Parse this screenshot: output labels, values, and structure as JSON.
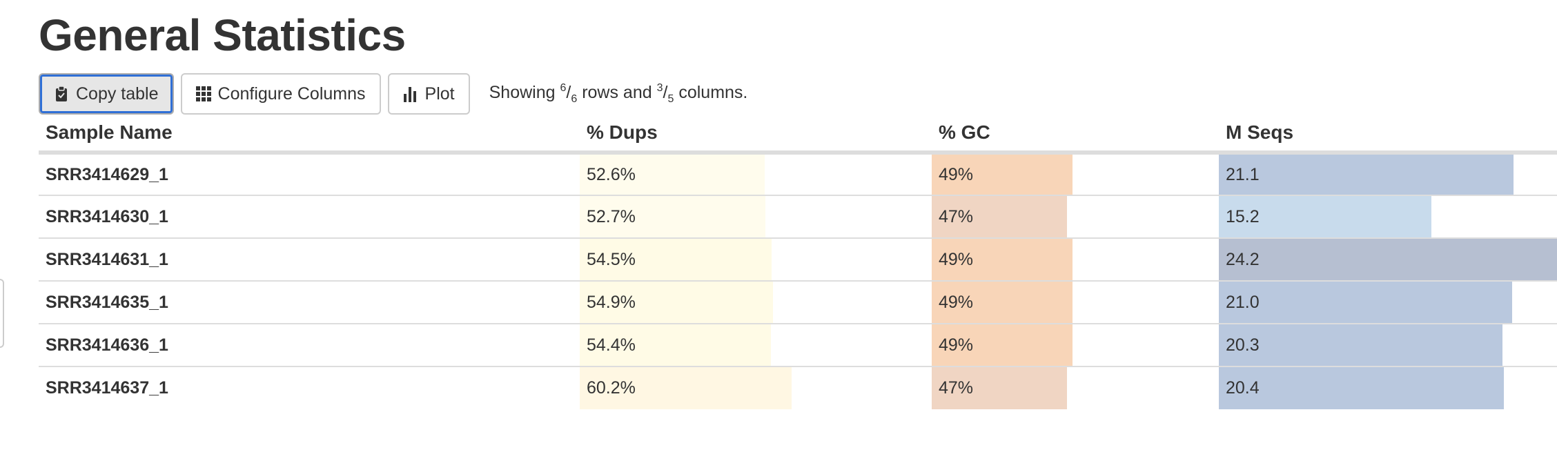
{
  "title": "General Statistics",
  "toolbar": {
    "copy_label": "Copy table",
    "configure_label": "Configure Columns",
    "plot_label": "Plot",
    "showing_prefix": "Showing",
    "rows_shown": "6",
    "rows_total": "6",
    "rows_word": "rows and",
    "cols_shown": "3",
    "cols_total": "5",
    "cols_word": "columns."
  },
  "table": {
    "headers": [
      "Sample Name",
      "% Dups",
      "% GC",
      "M Seqs"
    ],
    "rows": [
      {
        "name": "SRR3414629_1",
        "dups": "52.6%",
        "gc": "49%",
        "mseqs": "21.1"
      },
      {
        "name": "SRR3414630_1",
        "dups": "52.7%",
        "gc": "47%",
        "mseqs": "15.2"
      },
      {
        "name": "SRR3414631_1",
        "dups": "54.5%",
        "gc": "49%",
        "mseqs": "24.2"
      },
      {
        "name": "SRR3414635_1",
        "dups": "54.9%",
        "gc": "49%",
        "mseqs": "21.0"
      },
      {
        "name": "SRR3414636_1",
        "dups": "54.4%",
        "gc": "49%",
        "mseqs": "20.3"
      },
      {
        "name": "SRR3414637_1",
        "dups": "60.2%",
        "gc": "47%",
        "mseqs": "20.4"
      }
    ],
    "bar_fractions": {
      "dups": [
        0.526,
        0.527,
        0.545,
        0.549,
        0.544,
        0.602
      ],
      "gc": [
        0.49,
        0.47,
        0.49,
        0.49,
        0.49,
        0.47
      ],
      "mseqs": [
        0.872,
        0.628,
        1.0,
        0.868,
        0.839,
        0.843
      ]
    },
    "bar_colors": {
      "dups": [
        "#fffced",
        "#fffced",
        "#fffbe6",
        "#fffbe6",
        "#fffbe6",
        "#fff7e3"
      ],
      "gc": [
        "#f8d5b8",
        "#f0d5c3",
        "#f8d5b8",
        "#f8d5b8",
        "#f8d5b8",
        "#f0d5c3"
      ],
      "mseqs": [
        "#b9c8de",
        "#c8dbec",
        "#b6bfd1",
        "#b9c8de",
        "#b9c8de",
        "#b9c8de"
      ]
    }
  },
  "icons": {
    "copy": "clipboard-icon",
    "configure": "grid-icon",
    "plot": "bar-chart-icon"
  }
}
